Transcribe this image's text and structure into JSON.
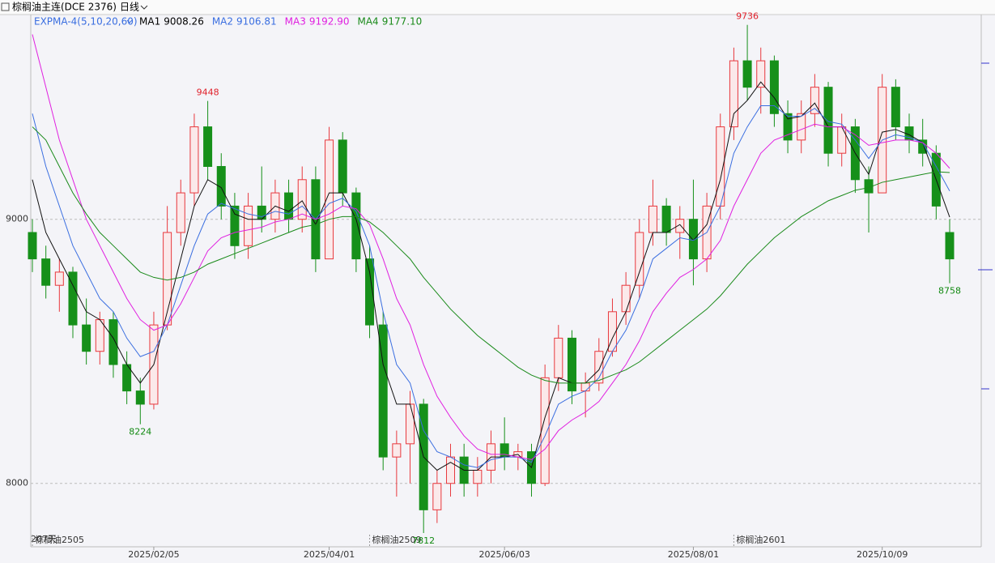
{
  "title": "棕榈油主连(DCE 2376)",
  "period": "日线",
  "chart_data": {
    "type": "candlestick",
    "indicator": "EXPMA-4(5,10,20,60)",
    "count_label": "207天",
    "ylim": [
      7760,
      9775
    ],
    "yticks": [
      8000,
      9000
    ],
    "grid": true,
    "up_color": "#e8383d",
    "down_color": "#16901a",
    "categories": [
      null,
      null,
      null,
      null,
      null,
      null,
      null,
      null,
      null,
      "2025/02/05",
      null,
      null,
      null,
      null,
      null,
      null,
      null,
      null,
      null,
      null,
      null,
      null,
      "2025/04/01",
      null,
      null,
      null,
      null,
      null,
      null,
      null,
      null,
      null,
      null,
      null,
      null,
      "2025/06/03",
      null,
      null,
      null,
      null,
      null,
      null,
      null,
      null,
      null,
      null,
      null,
      null,
      null,
      "2025/08/01",
      null,
      null,
      null,
      null,
      null,
      null,
      null,
      null,
      null,
      null,
      null,
      null,
      null,
      "2025/10/09",
      null,
      null,
      null,
      null,
      null
    ],
    "open": [
      8950,
      8850,
      8750,
      8800,
      8600,
      8500,
      8620,
      8450,
      8350,
      8300,
      8600,
      8950,
      9100,
      9350,
      9200,
      9050,
      8900,
      9050,
      9000,
      9100,
      9000,
      9150,
      8850,
      9300,
      9100,
      8850,
      8600,
      8100,
      8150,
      8300,
      7900,
      8000,
      8100,
      8000,
      8050,
      8150,
      8100,
      8120,
      8000,
      8400,
      8550,
      8350,
      8380,
      8500,
      8650,
      8750,
      8950,
      9050,
      8950,
      9000,
      8850,
      9050,
      9350,
      9600,
      9500,
      9600,
      9400,
      9300,
      9400,
      9500,
      9250,
      9350,
      9150,
      9100,
      9500,
      9350,
      9300,
      9250,
      8950
    ],
    "high": [
      9000,
      8900,
      8850,
      8820,
      8700,
      8650,
      8650,
      8500,
      8400,
      8650,
      9050,
      9150,
      9400,
      9448,
      9250,
      9100,
      9100,
      9200,
      9150,
      9150,
      9200,
      9200,
      9350,
      9330,
      9120,
      8900,
      8650,
      8200,
      8350,
      8320,
      8050,
      8150,
      8150,
      8100,
      8200,
      8250,
      8150,
      8150,
      8450,
      8600,
      8580,
      8420,
      8550,
      8700,
      8800,
      9000,
      9150,
      9080,
      9050,
      9150,
      9100,
      9400,
      9650,
      9736,
      9650,
      9620,
      9450,
      9450,
      9550,
      9520,
      9400,
      9380,
      9200,
      9550,
      9530,
      9400,
      9380,
      9280,
      9000
    ],
    "low": [
      8800,
      8700,
      8650,
      8550,
      8450,
      8450,
      8400,
      8300,
      8224,
      8280,
      8580,
      8900,
      9050,
      9150,
      9000,
      8850,
      8850,
      8950,
      8950,
      8950,
      8950,
      8800,
      8850,
      9050,
      8800,
      8550,
      8050,
      7950,
      8000,
      7812,
      7850,
      7950,
      7950,
      7950,
      8000,
      8050,
      8050,
      7950,
      7990,
      8350,
      8300,
      8250,
      8350,
      8480,
      8600,
      8700,
      8900,
      8900,
      8850,
      8750,
      8800,
      9000,
      9300,
      9450,
      9400,
      9350,
      9250,
      9250,
      9350,
      9200,
      9200,
      9100,
      8950,
      9100,
      9300,
      9250,
      9200,
      9000,
      8758
    ],
    "close": [
      8850,
      8750,
      8800,
      8600,
      8500,
      8620,
      8450,
      8350,
      8300,
      8600,
      8950,
      9100,
      9350,
      9200,
      9050,
      8900,
      9050,
      9000,
      9100,
      9000,
      9150,
      8850,
      9300,
      9100,
      8850,
      8600,
      8100,
      8150,
      8300,
      7900,
      8000,
      8100,
      8000,
      8050,
      8150,
      8100,
      8120,
      8000,
      8400,
      8550,
      8350,
      8380,
      8500,
      8650,
      8750,
      8950,
      9050,
      8950,
      9000,
      8850,
      9050,
      9350,
      9600,
      9500,
      9600,
      9400,
      9300,
      9400,
      9500,
      9250,
      9350,
      9150,
      9100,
      9500,
      9350,
      9300,
      9250,
      9050,
      8850
    ],
    "peaks": [
      {
        "index": 13,
        "field": "high"
      },
      {
        "index": 53,
        "field": "high"
      },
      {
        "index": 8,
        "field": "low"
      },
      {
        "index": 29,
        "field": "low"
      },
      {
        "index": 68,
        "field": "low"
      }
    ],
    "contracts": [
      {
        "text": "棕榈油2505",
        "index": 0
      },
      {
        "text": "棕榈油2509",
        "index": 25
      },
      {
        "text": "棕榈油2601",
        "index": 52
      }
    ],
    "series": [
      {
        "name": "MA1",
        "legend_value": 9008.26,
        "color": "#111111",
        "values": [
          9150,
          8950,
          8850,
          8750,
          8650,
          8620,
          8550,
          8450,
          8380,
          8450,
          8650,
          8850,
          9050,
          9150,
          9120,
          9020,
          9000,
          9000,
          9050,
          9030,
          9070,
          8980,
          9100,
          9100,
          9000,
          8800,
          8450,
          8300,
          8300,
          8100,
          8050,
          8080,
          8050,
          8050,
          8100,
          8100,
          8110,
          8060,
          8250,
          8400,
          8380,
          8380,
          8430,
          8550,
          8650,
          8800,
          8950,
          8950,
          8980,
          8920,
          8980,
          9150,
          9400,
          9450,
          9520,
          9460,
          9380,
          9390,
          9440,
          9350,
          9350,
          9250,
          9170,
          9330,
          9340,
          9320,
          9290,
          9150,
          9008
        ]
      },
      {
        "name": "MA2",
        "legend_value": 9106.81,
        "color": "#3a6ee0",
        "values": [
          9400,
          9200,
          9050,
          8900,
          8800,
          8700,
          8650,
          8550,
          8480,
          8500,
          8600,
          8750,
          8900,
          9020,
          9060,
          9040,
          9020,
          9010,
          9030,
          9020,
          9050,
          9000,
          9060,
          9080,
          9030,
          8900,
          8650,
          8450,
          8380,
          8200,
          8120,
          8100,
          8070,
          8060,
          8090,
          8100,
          8100,
          8080,
          8180,
          8300,
          8330,
          8350,
          8400,
          8500,
          8580,
          8700,
          8850,
          8890,
          8930,
          8920,
          8950,
          9050,
          9250,
          9350,
          9430,
          9430,
          9390,
          9390,
          9420,
          9370,
          9360,
          9300,
          9230,
          9300,
          9320,
          9310,
          9290,
          9200,
          9107
        ]
      },
      {
        "name": "MA3",
        "legend_value": 9192.9,
        "color": "#e020e0",
        "values": [
          9700,
          9500,
          9300,
          9150,
          9000,
          8900,
          8800,
          8700,
          8620,
          8580,
          8600,
          8680,
          8780,
          8880,
          8930,
          8950,
          8960,
          8970,
          8990,
          9000,
          9020,
          9000,
          9020,
          9050,
          9040,
          8980,
          8850,
          8700,
          8600,
          8450,
          8330,
          8250,
          8180,
          8130,
          8110,
          8110,
          8100,
          8090,
          8130,
          8200,
          8240,
          8270,
          8310,
          8380,
          8450,
          8540,
          8650,
          8720,
          8780,
          8810,
          8850,
          8920,
          9050,
          9150,
          9250,
          9300,
          9320,
          9340,
          9360,
          9350,
          9350,
          9320,
          9280,
          9290,
          9300,
          9300,
          9290,
          9250,
          9193
        ]
      },
      {
        "name": "MA4",
        "legend_value": 9177.1,
        "color": "#1a8a1a",
        "values": [
          9350,
          9300,
          9200,
          9100,
          9020,
          8950,
          8900,
          8850,
          8800,
          8780,
          8770,
          8780,
          8800,
          8830,
          8850,
          8870,
          8890,
          8910,
          8930,
          8950,
          8970,
          8980,
          9000,
          9010,
          9010,
          8990,
          8950,
          8900,
          8850,
          8780,
          8720,
          8660,
          8610,
          8560,
          8520,
          8480,
          8440,
          8410,
          8390,
          8380,
          8380,
          8380,
          8390,
          8410,
          8430,
          8460,
          8500,
          8540,
          8580,
          8620,
          8660,
          8710,
          8770,
          8830,
          8880,
          8930,
          8970,
          9010,
          9040,
          9070,
          9090,
          9110,
          9120,
          9140,
          9150,
          9160,
          9170,
          9180,
          9177
        ]
      }
    ]
  }
}
